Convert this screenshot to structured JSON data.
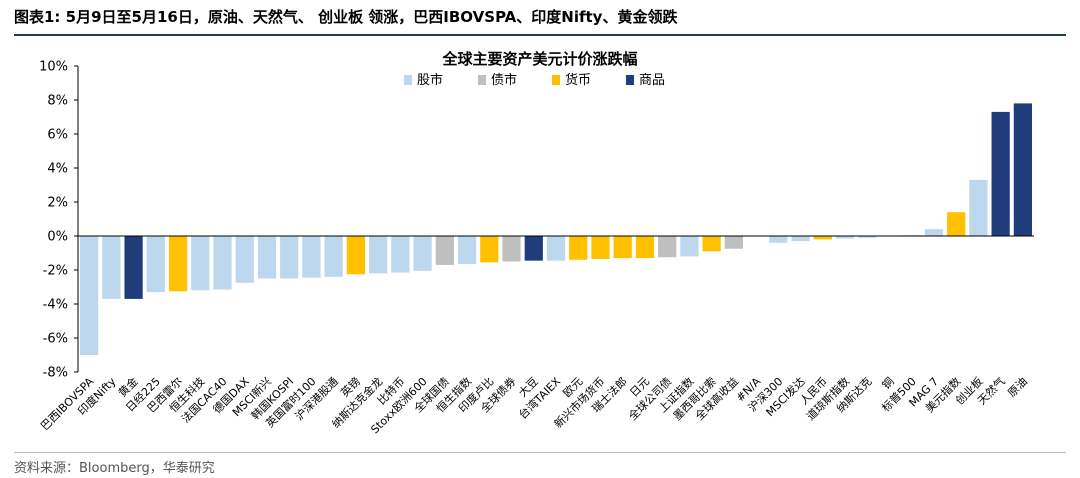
{
  "header": {
    "title": "图表1:  5月9日至5月16日，原油、天然气、 创业板 领涨，巴西IBOVSPA、印度Nifty、黄金领跌"
  },
  "footer": {
    "source": "资料来源：Bloomberg，华泰研究"
  },
  "colors": {
    "股市": "#bdd7ee",
    "债市": "#bfbfbf",
    "货币": "#ffc000",
    "商品": "#1f3d7a"
  },
  "chart_data": {
    "type": "bar",
    "title": "全球主要资产美元计价涨跌幅",
    "legend": [
      "股市",
      "债市",
      "货币",
      "商品"
    ],
    "legend_position": "top",
    "ylim": [
      -8,
      10
    ],
    "yticks": [
      "10%",
      "8%",
      "6%",
      "4%",
      "2%",
      "0%",
      "-2%",
      "-4%",
      "-6%",
      "-8%"
    ],
    "grid": false,
    "categories": [
      "巴西IBOVSPA",
      "印度Nifty",
      "黄金",
      "日经225",
      "巴西雷尔",
      "恒生科技",
      "法国CAC40",
      "德国DAX",
      "MSCI新兴",
      "韩国KOSPI",
      "英国富时100",
      "沪深港股通",
      "英镑",
      "纳斯达克金龙",
      "比特币",
      "Stoxx欧洲600",
      "全球国债",
      "恒生指数",
      "印度卢比",
      "全球债券",
      "大豆",
      "台湾TAIEX",
      "欧元",
      "新兴市场货币",
      "瑞士法郎",
      "日元",
      "全球公司债",
      "上证指数",
      "墨西哥比索",
      "全球高收益",
      "#N/A",
      "沪深300",
      "MSCI发达",
      "人民币",
      "道琼斯指数",
      "纳斯达克",
      "铜",
      "标普500",
      "MAG 7",
      "美元指数",
      "创业板",
      "天然气",
      "原油"
    ],
    "values": [
      -7.0,
      -3.7,
      -3.7,
      -3.3,
      -3.25,
      -3.2,
      -3.15,
      -2.75,
      -2.5,
      -2.5,
      -2.45,
      -2.4,
      -2.25,
      -2.2,
      -2.15,
      -2.05,
      -1.7,
      -1.65,
      -1.55,
      -1.5,
      -1.45,
      -1.45,
      -1.4,
      -1.35,
      -1.3,
      -1.3,
      -1.25,
      -1.2,
      -0.9,
      -0.75,
      0,
      -0.4,
      -0.3,
      -0.2,
      -0.15,
      -0.1,
      0,
      0.05,
      0.4,
      1.4,
      3.3,
      7.3,
      7.8
    ],
    "asset_class": [
      "股市",
      "股市",
      "商品",
      "股市",
      "货币",
      "股市",
      "股市",
      "股市",
      "股市",
      "股市",
      "股市",
      "股市",
      "货币",
      "股市",
      "股市",
      "股市",
      "债市",
      "股市",
      "货币",
      "债市",
      "商品",
      "股市",
      "货币",
      "货币",
      "货币",
      "货币",
      "债市",
      "股市",
      "货币",
      "债市",
      "股市",
      "股市",
      "股市",
      "货币",
      "股市",
      "股市",
      "商品",
      "股市",
      "股市",
      "货币",
      "股市",
      "商品",
      "商品"
    ]
  }
}
